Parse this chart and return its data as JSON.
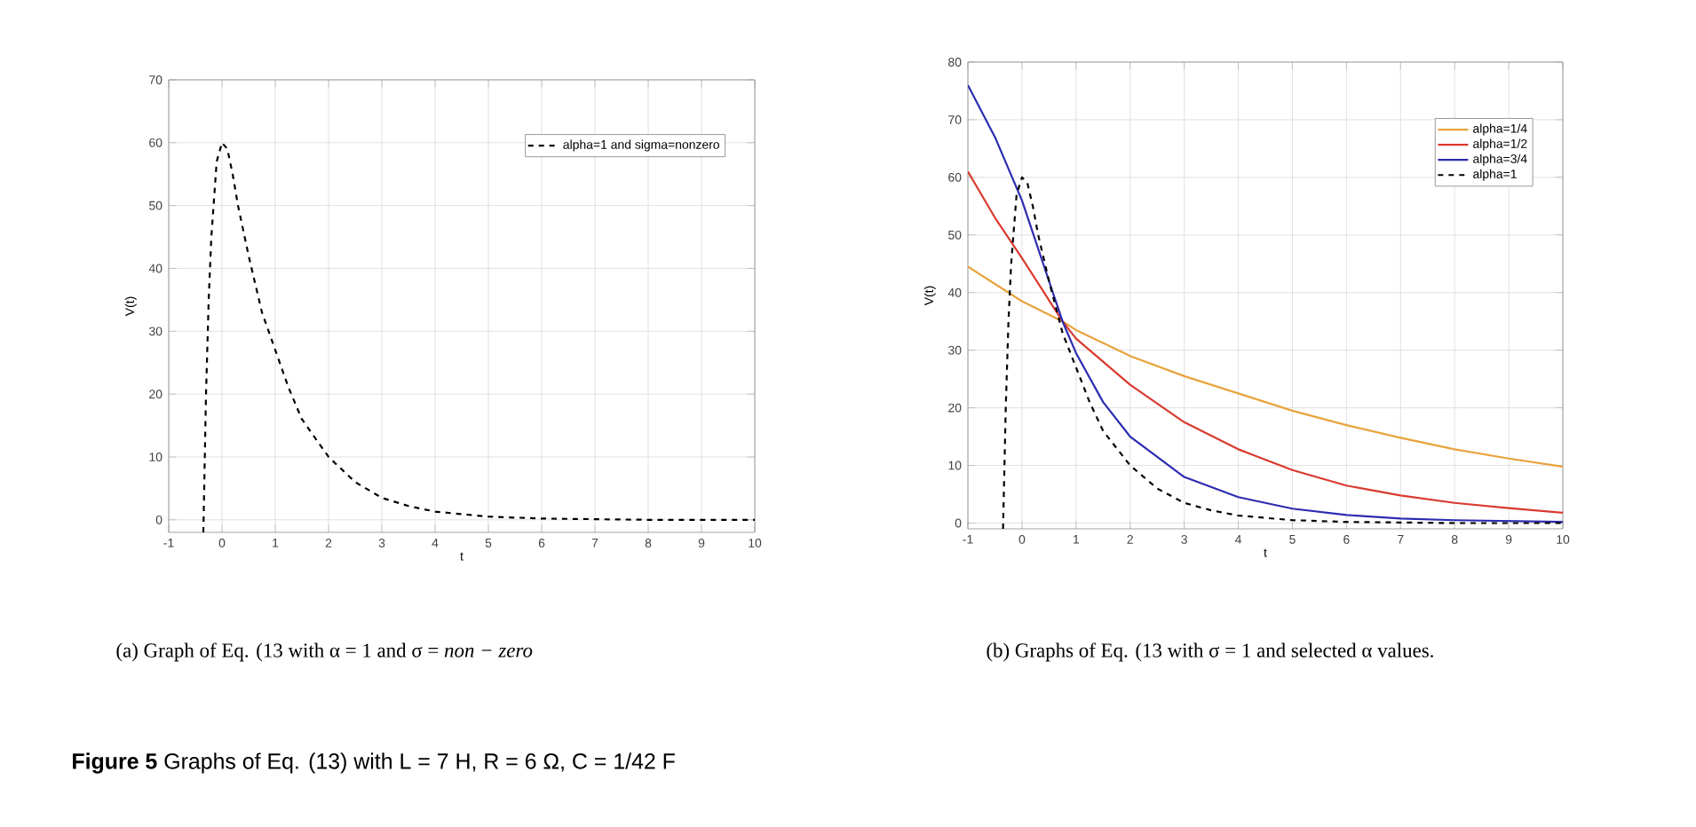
{
  "chart_data": [
    {
      "type": "line",
      "xlabel": "t",
      "ylabel": "V(t)",
      "xlim": [
        -1,
        10
      ],
      "ylim": [
        -2,
        70
      ],
      "xticks": [
        -1,
        0,
        1,
        2,
        3,
        4,
        5,
        6,
        7,
        8,
        9,
        10
      ],
      "yticks": [
        0,
        10,
        20,
        30,
        40,
        50,
        60,
        70
      ],
      "grid": true,
      "legend": "top right",
      "series": [
        {
          "name": "alpha=1 and sigma=nonzero",
          "color": "#000000",
          "line_style": "dashed",
          "x": [
            -0.35,
            -0.3,
            -0.25,
            -0.2,
            -0.1,
            0,
            0.1,
            0.2,
            0.3,
            0.5,
            0.75,
            1,
            1.25,
            1.5,
            2,
            2.5,
            3,
            3.5,
            4,
            5,
            6,
            7,
            8,
            9,
            10
          ],
          "values": [
            -2,
            20,
            35,
            45,
            57,
            60,
            59,
            55,
            50,
            42,
            33,
            27,
            21,
            16,
            10,
            6,
            3.5,
            2.2,
            1.3,
            0.5,
            0.2,
            0.1,
            0,
            0,
            0
          ]
        }
      ],
      "annotations": [
        "(a) Graph of Eq. (13 with α = 1 and σ = *non − zero*"
      ]
    },
    {
      "type": "line",
      "xlabel": "t",
      "ylabel": "V(t)",
      "xlim": [
        -1,
        10
      ],
      "ylim": [
        -1,
        80
      ],
      "xticks": [
        -1,
        0,
        1,
        2,
        3,
        4,
        5,
        6,
        7,
        8,
        9,
        10
      ],
      "yticks": [
        0,
        10,
        20,
        30,
        40,
        50,
        60,
        70,
        80
      ],
      "grid": true,
      "legend": "top right",
      "series": [
        {
          "name": "alpha=1/4",
          "color": "#e8a33c",
          "line_style": "solid",
          "x": [
            -1,
            0,
            0.75,
            1,
            2,
            3,
            4,
            5,
            6,
            7,
            8,
            9,
            10
          ],
          "values": [
            44.5,
            38.5,
            35,
            33.5,
            29,
            25.5,
            22.5,
            19.5,
            17,
            14.8,
            12.8,
            11.2,
            9.8
          ]
        },
        {
          "name": "alpha=1/2",
          "color": "#d93a2e",
          "line_style": "solid",
          "x": [
            -1,
            -0.5,
            0,
            0.75,
            1,
            1.5,
            2,
            3,
            4,
            5,
            6,
            7,
            8,
            9,
            10
          ],
          "values": [
            61,
            53,
            46,
            35,
            32,
            28,
            24,
            17.5,
            12.8,
            9.2,
            6.5,
            4.8,
            3.5,
            2.6,
            1.8
          ]
        },
        {
          "name": "alpha=3/4",
          "color": "#2b2bb0",
          "line_style": "solid",
          "x": [
            -1,
            -0.5,
            0,
            0.5,
            0.75,
            1,
            1.5,
            2,
            3,
            4,
            5,
            6,
            7,
            8,
            10
          ],
          "values": [
            76,
            67,
            56,
            42,
            35,
            29.5,
            21,
            15,
            8,
            4.5,
            2.5,
            1.4,
            0.8,
            0.5,
            0.2
          ]
        },
        {
          "name": "alpha=1",
          "color": "#000000",
          "line_style": "dashed",
          "x": [
            -0.35,
            -0.3,
            -0.25,
            -0.2,
            -0.1,
            0,
            0.1,
            0.2,
            0.3,
            0.5,
            0.75,
            1,
            1.25,
            1.5,
            2,
            2.5,
            3,
            3.5,
            4,
            5,
            6,
            7,
            8,
            9,
            10
          ],
          "values": [
            -1,
            20,
            35,
            45,
            57,
            60,
            59,
            55,
            50,
            42,
            33,
            27,
            21,
            16,
            10,
            6,
            3.5,
            2.2,
            1.3,
            0.5,
            0.2,
            0.1,
            0,
            0,
            0
          ]
        }
      ],
      "annotations": [
        "(b) Graphs of Eq. (13 with σ = 1 and selected α values.",
        "**Figure 5** Graphs of Eq. (13) with L = 7 H, R = 6 Ω, C = 1/42 F"
      ]
    }
  ]
}
